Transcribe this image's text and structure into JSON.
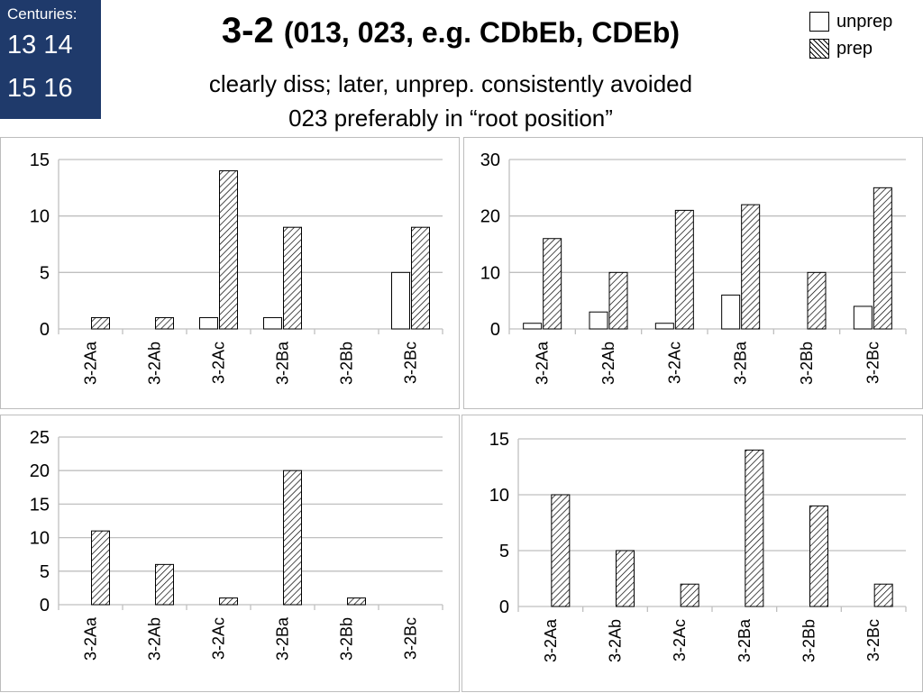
{
  "centuries": {
    "label": "Centuries:",
    "row1": "13 14",
    "row2": "15 16"
  },
  "header": {
    "title_main": "3-2",
    "title_paren": "(013, 023, e.g. CDbEb, CDEb)",
    "line2": "clearly diss; later, unprep. consistently avoided",
    "line3": "023 preferably in “root position”"
  },
  "legend": {
    "items": [
      {
        "label": "unprep",
        "style": "plain"
      },
      {
        "label": "prep",
        "style": "hatched"
      }
    ]
  },
  "colors": {
    "banner": "#1f3a6b",
    "grid": "#bfbfbf",
    "bar_fill": "#ffffff",
    "bar_stroke": "#000000"
  },
  "chart_data": [
    {
      "type": "bar",
      "categories": [
        "3-2Aa",
        "3-2Ab",
        "3-2Ac",
        "3-2Ba",
        "3-2Bb",
        "3-2Bc"
      ],
      "ylim": [
        0,
        15
      ],
      "yticks": [
        0,
        5,
        10,
        15
      ],
      "grid": true,
      "series": [
        {
          "name": "unprep",
          "pattern": "plain",
          "values": [
            0,
            0,
            1,
            1,
            0,
            5
          ]
        },
        {
          "name": "prep",
          "pattern": "hatched",
          "values": [
            1,
            1,
            14,
            9,
            0,
            9
          ]
        }
      ]
    },
    {
      "type": "bar",
      "categories": [
        "3-2Aa",
        "3-2Ab",
        "3-2Ac",
        "3-2Ba",
        "3-2Bb",
        "3-2Bc"
      ],
      "ylim": [
        0,
        30
      ],
      "yticks": [
        0,
        10,
        20,
        30
      ],
      "grid": true,
      "series": [
        {
          "name": "unprep",
          "pattern": "plain",
          "values": [
            1,
            3,
            1,
            6,
            0,
            4
          ]
        },
        {
          "name": "prep",
          "pattern": "hatched",
          "values": [
            16,
            10,
            21,
            22,
            10,
            25
          ]
        }
      ]
    },
    {
      "type": "bar",
      "categories": [
        "3-2Aa",
        "3-2Ab",
        "3-2Ac",
        "3-2Ba",
        "3-2Bb",
        "3-2Bc"
      ],
      "ylim": [
        0,
        25
      ],
      "yticks": [
        0,
        5,
        10,
        15,
        20,
        25
      ],
      "grid": true,
      "series": [
        {
          "name": "unprep",
          "pattern": "plain",
          "values": [
            0,
            0,
            0,
            0,
            0,
            0
          ]
        },
        {
          "name": "prep",
          "pattern": "hatched",
          "values": [
            11,
            6,
            1,
            20,
            1,
            0
          ]
        }
      ]
    },
    {
      "type": "bar",
      "categories": [
        "3-2Aa",
        "3-2Ab",
        "3-2Ac",
        "3-2Ba",
        "3-2Bb",
        "3-2Bc"
      ],
      "ylim": [
        0,
        15
      ],
      "yticks": [
        0,
        5,
        10,
        15
      ],
      "grid": true,
      "series": [
        {
          "name": "unprep",
          "pattern": "plain",
          "values": [
            0,
            0,
            0,
            0,
            0,
            0
          ]
        },
        {
          "name": "prep",
          "pattern": "hatched",
          "values": [
            10,
            5,
            2,
            14,
            9,
            2
          ]
        }
      ]
    }
  ]
}
